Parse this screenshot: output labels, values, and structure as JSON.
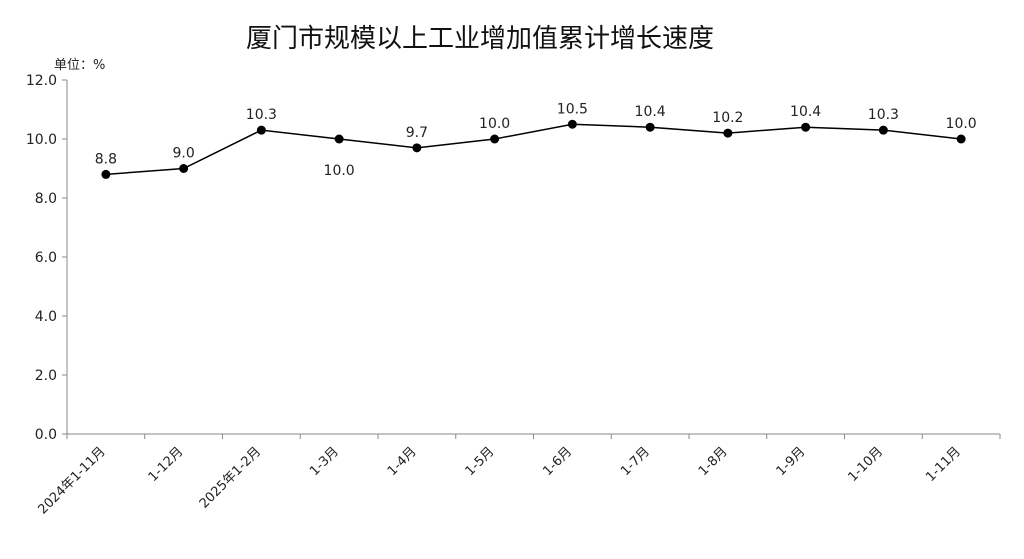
{
  "chart_data": {
    "type": "line",
    "title": "厦门市规模以上工业增加值累计增长速度",
    "unit_label": "单位：%",
    "xlabel": "",
    "ylabel": "",
    "categories": [
      "2024年1-11月",
      "1-12月",
      "2025年1-2月",
      "1-3月",
      "1-4月",
      "1-5月",
      "1-6月",
      "1-7月",
      "1-8月",
      "1-9月",
      "1-10月",
      "1-11月"
    ],
    "series": [
      {
        "values": [
          8.8,
          9.0,
          10.3,
          10.0,
          9.7,
          10.0,
          10.5,
          10.4,
          10.2,
          10.4,
          10.3,
          10.0
        ]
      }
    ],
    "data_labels": [
      "8.8",
      "9.0",
      "10.3",
      "10.0",
      "9.7",
      "10.0",
      "10.5",
      "10.4",
      "10.2",
      "10.4",
      "10.3",
      "10.0"
    ],
    "y_ticks": [
      "0.0",
      "2.0",
      "4.0",
      "6.0",
      "8.0",
      "10.0",
      "12.0"
    ],
    "ylim": [
      0,
      12
    ],
    "grid": false,
    "legend": "none",
    "colors": {
      "line": "#000000",
      "marker": "#000000",
      "axis": "#888888",
      "text": "#222222"
    }
  }
}
